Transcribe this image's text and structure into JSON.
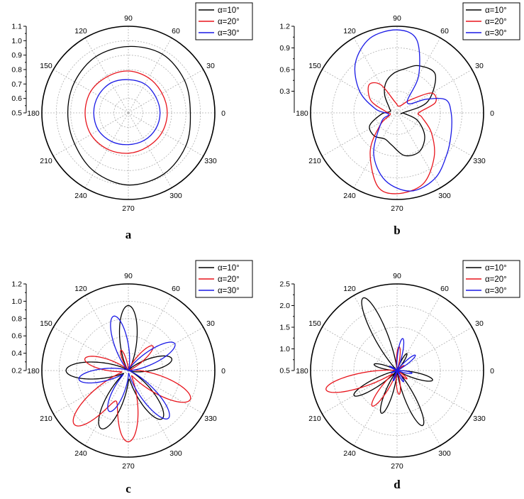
{
  "colors": {
    "a10": "#000000",
    "a20": "#e8141c",
    "a30": "#1a1ae6",
    "grid": "#b0b0b0"
  },
  "legend": [
    "α=10°",
    "α=20°",
    "α=30°"
  ],
  "chart_data": [
    {
      "type": "polar-line",
      "panel": "a",
      "radial_axis": {
        "range": [
          0.5,
          1.1
        ],
        "ticks": [
          "0.5",
          "0.6",
          "0.7",
          "0.8",
          "0.9",
          "1.0",
          "1.1"
        ]
      },
      "angular_ticks": [
        "0",
        "30",
        "60",
        "90",
        "120",
        "150",
        "180",
        "210",
        "240",
        "270",
        "300",
        "330"
      ],
      "grid": true,
      "legend_position": "top-right",
      "series": [
        {
          "name": "α=10°",
          "color": "#000000",
          "r_deg": [
            [
              0,
              0.93
            ],
            [
              30,
              0.95
            ],
            [
              60,
              0.97
            ],
            [
              90,
              0.96
            ],
            [
              120,
              0.95
            ],
            [
              150,
              0.93
            ],
            [
              180,
              0.92
            ],
            [
              210,
              0.93
            ],
            [
              240,
              0.97
            ],
            [
              270,
              1.0
            ],
            [
              300,
              0.99
            ],
            [
              330,
              0.96
            ]
          ]
        },
        {
          "name": "α=20°",
          "color": "#e8141c",
          "r_deg": [
            [
              0,
              0.77
            ],
            [
              30,
              0.77
            ],
            [
              60,
              0.78
            ],
            [
              90,
              0.79
            ],
            [
              120,
              0.79
            ],
            [
              150,
              0.8
            ],
            [
              180,
              0.8
            ],
            [
              210,
              0.8
            ],
            [
              240,
              0.79
            ],
            [
              270,
              0.78
            ],
            [
              300,
              0.77
            ],
            [
              330,
              0.77
            ]
          ]
        },
        {
          "name": "α=30°",
          "color": "#1a1ae6",
          "r_deg": [
            [
              0,
              0.72
            ],
            [
              30,
              0.72
            ],
            [
              60,
              0.73
            ],
            [
              90,
              0.73
            ],
            [
              120,
              0.74
            ],
            [
              150,
              0.74
            ],
            [
              180,
              0.74
            ],
            [
              210,
              0.74
            ],
            [
              240,
              0.73
            ],
            [
              270,
              0.72
            ],
            [
              300,
              0.72
            ],
            [
              330,
              0.72
            ]
          ]
        }
      ]
    },
    {
      "type": "polar-line",
      "panel": "b",
      "radial_axis": {
        "range": [
          0,
          1.2
        ],
        "ticks": [
          "0.3",
          "0.6",
          "0.9",
          "1.2"
        ]
      },
      "angular_ticks": [
        "0",
        "30",
        "60",
        "90",
        "120",
        "150",
        "180",
        "210",
        "240",
        "270",
        "300",
        "330"
      ],
      "grid": true,
      "legend_position": "top-right",
      "series": [
        {
          "name": "α=10°",
          "color": "#000000",
          "r_deg": [
            [
              0,
              0.08
            ],
            [
              20,
              0.45
            ],
            [
              45,
              0.75
            ],
            [
              65,
              0.72
            ],
            [
              80,
              0.62
            ],
            [
              95,
              0.55
            ],
            [
              110,
              0.45
            ],
            [
              125,
              0.3
            ],
            [
              150,
              0.12
            ],
            [
              170,
              0.1
            ],
            [
              185,
              0.22
            ],
            [
              205,
              0.42
            ],
            [
              225,
              0.45
            ],
            [
              245,
              0.4
            ],
            [
              260,
              0.45
            ],
            [
              280,
              0.6
            ],
            [
              300,
              0.62
            ],
            [
              320,
              0.5
            ],
            [
              340,
              0.3
            ],
            [
              355,
              0.1
            ]
          ]
        },
        {
          "name": "α=20°",
          "color": "#e8141c",
          "r_deg": [
            [
              0,
              0.3
            ],
            [
              15,
              0.55
            ],
            [
              30,
              0.55
            ],
            [
              45,
              0.25
            ],
            [
              70,
              0.1
            ],
            [
              100,
              0.15
            ],
            [
              120,
              0.45
            ],
            [
              135,
              0.55
            ],
            [
              155,
              0.4
            ],
            [
              175,
              0.15
            ],
            [
              195,
              0.1
            ],
            [
              215,
              0.28
            ],
            [
              235,
              0.65
            ],
            [
              255,
              1.05
            ],
            [
              270,
              1.12
            ],
            [
              290,
              1.05
            ],
            [
              310,
              0.8
            ],
            [
              330,
              0.55
            ],
            [
              350,
              0.35
            ]
          ]
        },
        {
          "name": "α=30°",
          "color": "#1a1ae6",
          "r_deg": [
            [
              0,
              0.75
            ],
            [
              15,
              0.7
            ],
            [
              25,
              0.45
            ],
            [
              45,
              0.2
            ],
            [
              60,
              0.6
            ],
            [
              75,
              1.05
            ],
            [
              90,
              1.15
            ],
            [
              110,
              1.1
            ],
            [
              130,
              0.9
            ],
            [
              150,
              0.6
            ],
            [
              170,
              0.3
            ],
            [
              190,
              0.12
            ],
            [
              210,
              0.25
            ],
            [
              240,
              0.65
            ],
            [
              260,
              0.95
            ],
            [
              280,
              1.1
            ],
            [
              300,
              1.05
            ],
            [
              320,
              0.9
            ],
            [
              340,
              0.8
            ]
          ]
        }
      ]
    },
    {
      "type": "polar-line",
      "panel": "c",
      "radial_axis": {
        "range": [
          0.2,
          1.2
        ],
        "ticks": [
          "0.2",
          "0.4",
          "0.6",
          "0.8",
          "1.0",
          "1.2"
        ]
      },
      "angular_ticks": [
        "0",
        "30",
        "60",
        "90",
        "120",
        "150",
        "180",
        "210",
        "240",
        "270",
        "300",
        "330"
      ],
      "grid": true,
      "legend_position": "top-right",
      "lobes": [
        {
          "name": "α=10°",
          "color": "#000000",
          "base": 0.2,
          "petals": [
            [
              90,
              0.95,
              13
            ],
            [
              180,
              0.92,
              13
            ],
            [
              245,
              0.94,
              13
            ],
            [
              305,
              0.88,
              13
            ],
            [
              15,
              0.72,
              13
            ]
          ]
        },
        {
          "name": "α=20°",
          "color": "#e8141c",
          "base": 0.2,
          "petals": [
            [
              45,
              0.6,
              10
            ],
            [
              225,
              1.08,
              13
            ],
            [
              270,
              1.02,
              13
            ],
            [
              335,
              0.99,
              13
            ],
            [
              165,
              0.72,
              12
            ],
            [
              110,
              0.45,
              8
            ]
          ]
        },
        {
          "name": "α=30°",
          "color": "#1a1ae6",
          "base": 0.2,
          "petals": [
            [
              105,
              0.85,
              12
            ],
            [
              190,
              0.78,
              12
            ],
            [
              245,
              0.72,
              12
            ],
            [
              310,
              0.92,
              12
            ],
            [
              30,
              0.82,
              12
            ]
          ]
        }
      ]
    },
    {
      "type": "polar-line",
      "panel": "d",
      "radial_axis": {
        "range": [
          0.5,
          2.5
        ],
        "ticks": [
          "0.5",
          "1.0",
          "1.5",
          "2.0",
          "2.5"
        ]
      },
      "angular_ticks": [
        "0",
        "30",
        "60",
        "90",
        "120",
        "150",
        "180",
        "210",
        "240",
        "270",
        "300",
        "330"
      ],
      "grid": true,
      "legend_position": "top-right",
      "lobes": [
        {
          "name": "α=10°",
          "color": "#000000",
          "base": 0.3,
          "petals": [
            [
              115,
              2.35,
              9
            ],
            [
              165,
              1.05,
              9
            ],
            [
              210,
              1.65,
              9
            ],
            [
              250,
              1.55,
              9
            ],
            [
              295,
              1.9,
              9
            ],
            [
              345,
              1.35,
              9
            ],
            [
              60,
              0.95,
              8
            ]
          ]
        },
        {
          "name": "α=20°",
          "color": "#e8141c",
          "base": 0.3,
          "petals": [
            [
              195,
              2.2,
              10
            ],
            [
              235,
              1.5,
              9
            ],
            [
              275,
              1.05,
              9
            ],
            [
              85,
              1.05,
              8
            ],
            [
              35,
              0.7,
              8
            ],
            [
              320,
              0.8,
              8
            ]
          ]
        },
        {
          "name": "α=30°",
          "color": "#1a1ae6",
          "base": 0.3,
          "petals": [
            [
              80,
              1.25,
              8
            ],
            [
              40,
              1.05,
              8
            ],
            [
              350,
              0.85,
              8
            ],
            [
              300,
              0.8,
              8
            ],
            [
              250,
              0.75,
              8
            ],
            [
              200,
              0.65,
              8
            ],
            [
              150,
              0.7,
              8
            ]
          ]
        }
      ]
    }
  ]
}
